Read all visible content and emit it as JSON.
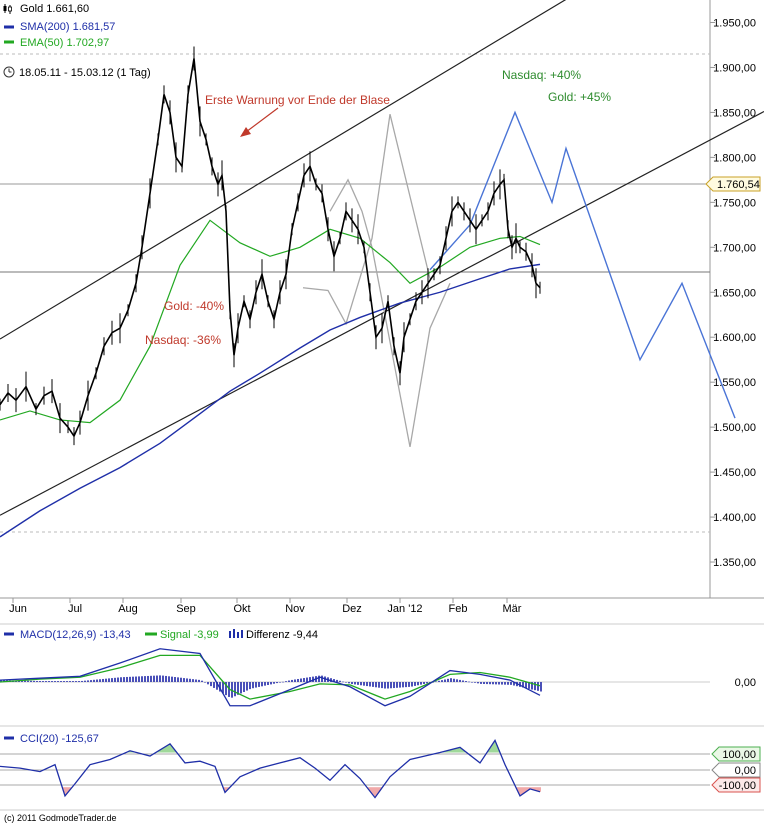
{
  "chart_data": [
    {
      "type": "line",
      "panel": "price",
      "x_ticks": [
        "Jun",
        "Jul",
        "Aug",
        "Sep",
        "Okt",
        "Nov",
        "Dez",
        "Jan '12",
        "Feb",
        "Mär"
      ],
      "y_ticks": [
        "1.950,00",
        "1.900,00",
        "1.850,00",
        "1.800,00",
        "1.750,00",
        "1.700,00",
        "1.650,00",
        "1.600,00",
        "1.550,00",
        "1.500,00",
        "1.450,00",
        "1.400,00",
        "1.350,00"
      ],
      "ylim": [
        1310,
        1975
      ],
      "price_marker": "1.760,54",
      "legend": {
        "symbol": "Gold 1.661,60",
        "sma": "SMA(200) 1.681,57",
        "ema": "EMA(50) 1.702,97",
        "period": "18.05.11 - 15.03.12 (1 Tag)"
      },
      "annotations": {
        "warning": "Erste Warnung vor Ende der Blase",
        "gold_drop": "Gold: -40%",
        "nasdaq_drop": "Nasdaq: -36%",
        "nasdaq_rise": "Nasdaq: +40%",
        "gold_rise": "Gold: +45%"
      },
      "colors": {
        "price": "#000000",
        "sma": "#1f2fa8",
        "ema": "#22a822",
        "nasdaq": "#4a74d6",
        "analog": "#a8a8a8",
        "annotation_red": "#c0392b",
        "annotation_green": "#2e8b2e"
      },
      "series": [
        {
          "role": "price",
          "points": [
            [
              0,
              1525
            ],
            [
              8,
              1538
            ],
            [
              16,
              1530
            ],
            [
              26,
              1545
            ],
            [
              36,
              1520
            ],
            [
              44,
              1535
            ],
            [
              52,
              1540
            ],
            [
              60,
              1510
            ],
            [
              68,
              1500
            ],
            [
              74,
              1490
            ],
            [
              80,
              1505
            ],
            [
              88,
              1535
            ],
            [
              96,
              1560
            ],
            [
              104,
              1590
            ],
            [
              112,
              1605
            ],
            [
              120,
              1610
            ],
            [
              128,
              1630
            ],
            [
              136,
              1660
            ],
            [
              142,
              1700
            ],
            [
              150,
              1760
            ],
            [
              158,
              1820
            ],
            [
              164,
              1870
            ],
            [
              170,
              1850
            ],
            [
              176,
              1800
            ],
            [
              182,
              1790
            ],
            [
              188,
              1870
            ],
            [
              194,
              1910
            ],
            [
              200,
              1840
            ],
            [
              206,
              1820
            ],
            [
              212,
              1790
            ],
            [
              218,
              1770
            ],
            [
              222,
              1780
            ],
            [
              226,
              1740
            ],
            [
              230,
              1630
            ],
            [
              234,
              1580
            ],
            [
              238,
              1610
            ],
            [
              244,
              1640
            ],
            [
              250,
              1620
            ],
            [
              256,
              1650
            ],
            [
              262,
              1670
            ],
            [
              268,
              1640
            ],
            [
              274,
              1620
            ],
            [
              280,
              1650
            ],
            [
              286,
              1670
            ],
            [
              292,
              1720
            ],
            [
              298,
              1750
            ],
            [
              304,
              1780
            ],
            [
              310,
              1790
            ],
            [
              316,
              1770
            ],
            [
              322,
              1760
            ],
            [
              328,
              1720
            ],
            [
              334,
              1690
            ],
            [
              340,
              1710
            ],
            [
              346,
              1740
            ],
            [
              352,
              1730
            ],
            [
              358,
              1720
            ],
            [
              364,
              1700
            ],
            [
              370,
              1650
            ],
            [
              376,
              1600
            ],
            [
              382,
              1610
            ],
            [
              388,
              1640
            ],
            [
              394,
              1590
            ],
            [
              400,
              1560
            ],
            [
              404,
              1600
            ],
            [
              410,
              1620
            ],
            [
              416,
              1640
            ],
            [
              422,
              1650
            ],
            [
              428,
              1660
            ],
            [
              434,
              1670
            ],
            [
              440,
              1680
            ],
            [
              446,
              1710
            ],
            [
              452,
              1740
            ],
            [
              458,
              1750
            ],
            [
              464,
              1740
            ],
            [
              470,
              1730
            ],
            [
              476,
              1720
            ],
            [
              482,
              1730
            ],
            [
              488,
              1740
            ],
            [
              494,
              1760
            ],
            [
              500,
              1770
            ],
            [
              504,
              1775
            ],
            [
              508,
              1720
            ],
            [
              512,
              1700
            ],
            [
              516,
              1710
            ],
            [
              520,
              1700
            ],
            [
              526,
              1695
            ],
            [
              532,
              1680
            ],
            [
              536,
              1660
            ],
            [
              540,
              1655
            ]
          ]
        },
        {
          "role": "sma",
          "points": [
            [
              0,
              1378
            ],
            [
              40,
              1407
            ],
            [
              80,
              1432
            ],
            [
              120,
              1455
            ],
            [
              160,
              1482
            ],
            [
              200,
              1515
            ],
            [
              230,
              1540
            ],
            [
              260,
              1560
            ],
            [
              300,
              1588
            ],
            [
              330,
              1608
            ],
            [
              360,
              1622
            ],
            [
              400,
              1638
            ],
            [
              440,
              1650
            ],
            [
              480,
              1665
            ],
            [
              510,
              1676
            ],
            [
              540,
              1681
            ]
          ]
        },
        {
          "role": "ema",
          "points": [
            [
              0,
              1508
            ],
            [
              30,
              1518
            ],
            [
              60,
              1508
            ],
            [
              90,
              1505
            ],
            [
              120,
              1530
            ],
            [
              150,
              1590
            ],
            [
              180,
              1680
            ],
            [
              210,
              1730
            ],
            [
              240,
              1705
            ],
            [
              270,
              1690
            ],
            [
              300,
              1700
            ],
            [
              330,
              1720
            ],
            [
              360,
              1710
            ],
            [
              390,
              1683
            ],
            [
              410,
              1660
            ],
            [
              440,
              1678
            ],
            [
              470,
              1700
            ],
            [
              500,
              1710
            ],
            [
              520,
              1712
            ],
            [
              540,
              1703
            ]
          ]
        },
        {
          "role": "nasdaq",
          "points": [
            [
              430,
              1675
            ],
            [
              470,
              1725
            ],
            [
              515,
              1850
            ],
            [
              552,
              1750
            ],
            [
              566,
              1810
            ],
            [
              640,
              1575
            ],
            [
              682,
              1660
            ],
            [
              735,
              1510
            ]
          ]
        },
        {
          "role": "analog",
          "points": [
            [
              303,
              1655
            ],
            [
              328,
              1652
            ],
            [
              346,
              1615
            ],
            [
              372,
              1710
            ],
            [
              390,
              1848
            ],
            [
              430,
              1665
            ]
          ]
        },
        {
          "role": "analog",
          "points": [
            [
              330,
              1740
            ],
            [
              348,
              1775
            ],
            [
              362,
              1740
            ],
            [
              372,
              1700
            ],
            [
              410,
              1478
            ],
            [
              430,
              1610
            ],
            [
              450,
              1660
            ]
          ]
        },
        {
          "role": "trend",
          "points": [
            [
              0,
              1598
            ],
            [
              580,
              1985
            ]
          ]
        },
        {
          "role": "trend",
          "points": [
            [
              0,
              1402
            ],
            [
              764,
              1851
            ]
          ]
        }
      ]
    },
    {
      "type": "line",
      "panel": "macd",
      "legend": {
        "macd": "MACD(12,26,9) -13,43",
        "signal": "Signal -3,99",
        "diff": "Differenz -9,44"
      },
      "y_ticks": [
        "0,00"
      ],
      "ylim": [
        -40,
        40
      ],
      "series": [
        {
          "name": "MACD",
          "color": "#1f2fa8",
          "points": [
            [
              0,
              2
            ],
            [
              40,
              4
            ],
            [
              80,
              6
            ],
            [
              120,
              20
            ],
            [
              160,
              35
            ],
            [
              200,
              30
            ],
            [
              230,
              -25
            ],
            [
              250,
              -25
            ],
            [
              290,
              -8
            ],
            [
              320,
              5
            ],
            [
              350,
              -5
            ],
            [
              385,
              -25
            ],
            [
              410,
              -15
            ],
            [
              450,
              12
            ],
            [
              480,
              8
            ],
            [
              510,
              2
            ],
            [
              540,
              -14
            ]
          ]
        },
        {
          "name": "Signal",
          "color": "#22a822",
          "points": [
            [
              0,
              0
            ],
            [
              40,
              3
            ],
            [
              80,
              5
            ],
            [
              120,
              15
            ],
            [
              160,
              28
            ],
            [
              200,
              28
            ],
            [
              230,
              -8
            ],
            [
              250,
              -18
            ],
            [
              290,
              -10
            ],
            [
              320,
              -2
            ],
            [
              350,
              -3
            ],
            [
              385,
              -18
            ],
            [
              410,
              -10
            ],
            [
              450,
              8
            ],
            [
              480,
              10
            ],
            [
              510,
              5
            ],
            [
              540,
              -4
            ]
          ]
        }
      ]
    },
    {
      "type": "line",
      "panel": "cci",
      "legend": {
        "cci": "CCI(20) -125,67"
      },
      "y_ticks": [
        "100,00",
        "0,00",
        "-100,00"
      ],
      "ylim": [
        -220,
        230
      ],
      "series": [
        {
          "name": "CCI",
          "color": "#1f2fa8",
          "points": [
            [
              0,
              20
            ],
            [
              20,
              10
            ],
            [
              40,
              -10
            ],
            [
              55,
              30
            ],
            [
              65,
              -150
            ],
            [
              75,
              -80
            ],
            [
              90,
              30
            ],
            [
              110,
              60
            ],
            [
              130,
              110
            ],
            [
              150,
              80
            ],
            [
              170,
              150
            ],
            [
              185,
              40
            ],
            [
              200,
              50
            ],
            [
              215,
              20
            ],
            [
              225,
              -130
            ],
            [
              240,
              -40
            ],
            [
              260,
              10
            ],
            [
              280,
              40
            ],
            [
              300,
              70
            ],
            [
              315,
              10
            ],
            [
              330,
              -60
            ],
            [
              345,
              30
            ],
            [
              360,
              -50
            ],
            [
              375,
              -160
            ],
            [
              390,
              -40
            ],
            [
              410,
              60
            ],
            [
              425,
              80
            ],
            [
              440,
              100
            ],
            [
              460,
              130
            ],
            [
              480,
              40
            ],
            [
              495,
              170
            ],
            [
              505,
              30
            ],
            [
              520,
              -150
            ],
            [
              530,
              -110
            ],
            [
              540,
              -126
            ]
          ]
        }
      ]
    }
  ],
  "footer": "(c) 2011 GodmodeTrader.de"
}
